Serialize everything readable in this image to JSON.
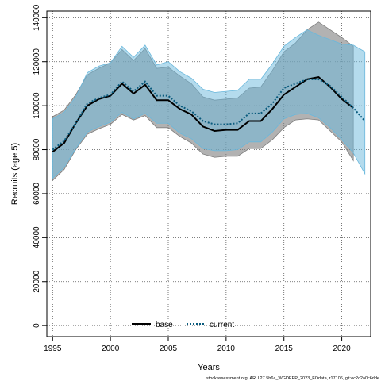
{
  "chart_data": {
    "type": "area",
    "xlabel": "Years",
    "ylabel": "Recruits (age 5)",
    "xlim": [
      1994.5,
      2022.5
    ],
    "ylim": [
      -5000,
      143000
    ],
    "x_ticks": [
      1995,
      2000,
      2005,
      2010,
      2015,
      2020
    ],
    "y_ticks": [
      0,
      20000,
      40000,
      60000,
      80000,
      100000,
      120000,
      140000
    ],
    "grid": true,
    "legend_position": "bottom-center",
    "series": [
      {
        "name": "base",
        "color": "#000000",
        "band_color": "#7f7f7f",
        "line_style": "solid",
        "x": [
          1995,
          1996,
          1997,
          1998,
          1999,
          2000,
          2001,
          2002,
          2003,
          2004,
          2005,
          2006,
          2007,
          2008,
          2009,
          2010,
          2011,
          2012,
          2013,
          2014,
          2015,
          2016,
          2017,
          2018,
          2019,
          2020,
          2021
        ],
        "values": [
          79000,
          83000,
          92000,
          100000,
          103000,
          104500,
          110000,
          105500,
          109500,
          102500,
          102500,
          98500,
          96000,
          90500,
          88500,
          89000,
          89000,
          93000,
          93000,
          98500,
          105000,
          108500,
          112000,
          113000,
          108500,
          103000,
          99000
        ],
        "lower": [
          66000,
          71000,
          80000,
          87000,
          89500,
          91500,
          96000,
          93500,
          95500,
          90000,
          90000,
          86000,
          83000,
          78000,
          76500,
          77000,
          77000,
          80500,
          80500,
          84500,
          90000,
          93500,
          94000,
          93500,
          88500,
          83500,
          75000
        ],
        "upper": [
          95000,
          98000,
          105000,
          114000,
          117000,
          119500,
          125500,
          120500,
          126000,
          117000,
          117500,
          113500,
          110000,
          104000,
          102500,
          103000,
          103500,
          108000,
          108500,
          116000,
          124500,
          128500,
          134500,
          138000,
          134500,
          131000,
          127000
        ]
      },
      {
        "name": "current",
        "color": "#0a5b7e",
        "band_color": "#6ab8dc",
        "line_style": "dotted",
        "x": [
          1995,
          1996,
          1997,
          1998,
          1999,
          2000,
          2001,
          2002,
          2003,
          2004,
          2005,
          2006,
          2007,
          2008,
          2009,
          2010,
          2011,
          2012,
          2013,
          2014,
          2015,
          2016,
          2017,
          2018,
          2019,
          2020,
          2021,
          2022
        ],
        "values": [
          80000,
          84000,
          92000,
          101000,
          103500,
          105000,
          111000,
          106500,
          111000,
          104500,
          104500,
          100000,
          97500,
          93000,
          91500,
          91500,
          92000,
          96500,
          96500,
          101000,
          108000,
          110000,
          112000,
          112000,
          109000,
          104000,
          99000,
          93000
        ],
        "lower": [
          67000,
          72000,
          80500,
          88000,
          90500,
          92500,
          97000,
          94000,
          96500,
          92000,
          92000,
          87500,
          85000,
          80500,
          79500,
          79500,
          80000,
          83500,
          83500,
          88000,
          94000,
          96000,
          96500,
          94500,
          90000,
          84500,
          78500,
          69000
        ],
        "upper": [
          94000,
          97000,
          104000,
          115000,
          118000,
          119500,
          127000,
          122000,
          127500,
          118500,
          120000,
          115500,
          112500,
          107500,
          106000,
          106500,
          107000,
          112000,
          112000,
          119000,
          127000,
          131000,
          134500,
          132000,
          130000,
          128000,
          127500,
          124500
        ]
      }
    ]
  },
  "legend": {
    "items": [
      {
        "label": "base"
      },
      {
        "label": "current"
      }
    ]
  },
  "footer": {
    "text": "stockassessment.org, ARU.27.5b6a_WGDEEP_2023_FOdata, r17106, git:ec2c2a0c6dde"
  }
}
